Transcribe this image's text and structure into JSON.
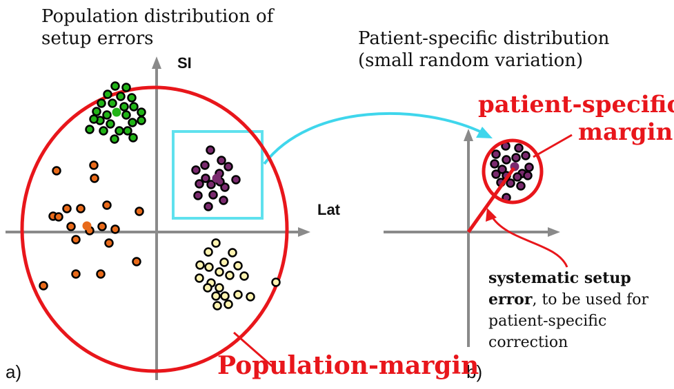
{
  "panel_a": {
    "title_lines": [
      "Population distribution of",
      "setup errors"
    ],
    "y_axis_label": "SI",
    "x_axis_label": "Lat",
    "panel_label": "a)",
    "margin_label": "Population-margin"
  },
  "panel_b": {
    "title_lines": [
      "Patient-specific distribution",
      "(small random variation)"
    ],
    "panel_label": "b)",
    "margin_label_lines": [
      "patient-specific",
      "margin"
    ],
    "annotation": {
      "bold": "systematic setup",
      "line2_bold": "error",
      "line2_rest": ", to be used for",
      "line3": "patient-specific",
      "line4": "correction"
    }
  },
  "colors": {
    "axis": "#8a8a8a",
    "margin": "#e8161b",
    "selection": "#5fe1ee",
    "arrow": "#3fd6ec",
    "green": "#21b317",
    "orange": "#e86a1a",
    "purple": "#7a2a6e",
    "yellow": "#fff3b0",
    "dot_outline": "#000000"
  }
}
